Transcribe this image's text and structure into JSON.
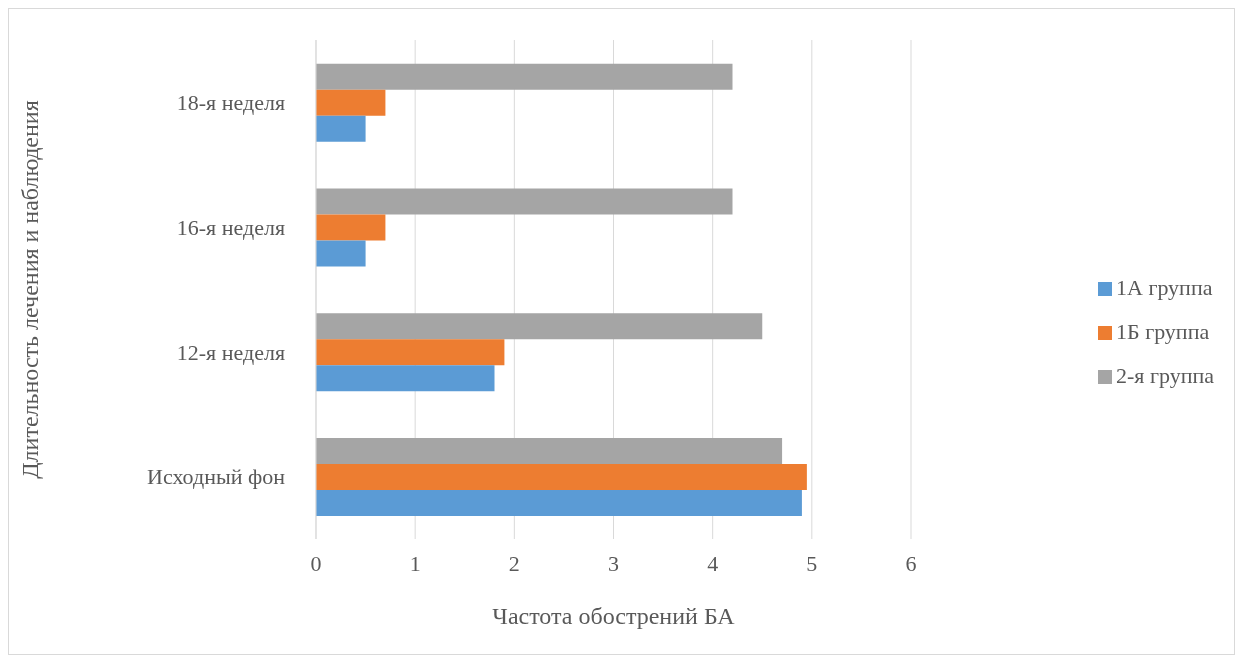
{
  "chart_data": {
    "type": "bar",
    "orientation": "horizontal",
    "xlabel": "Частота обострений БА",
    "ylabel": "Длительность лечения и наблюдения",
    "categories": [
      "18-я неделя",
      "16-я неделя",
      "12-я неделя",
      "Исходный фон"
    ],
    "series": [
      {
        "name": "2-я группа",
        "color": "#a5a5a5",
        "values": [
          4.2,
          4.2,
          4.5,
          4.7
        ]
      },
      {
        "name": "1Б группа",
        "color": "#ed7d31",
        "values": [
          0.7,
          0.7,
          1.9,
          4.95
        ]
      },
      {
        "name": "1А группа",
        "color": "#5b9bd5",
        "values": [
          0.5,
          0.5,
          1.8,
          4.9
        ]
      }
    ],
    "xlim": [
      0,
      6
    ],
    "xticks": [
      0,
      1,
      2,
      3,
      4,
      5,
      6
    ],
    "grid": "x",
    "legend": "right"
  }
}
